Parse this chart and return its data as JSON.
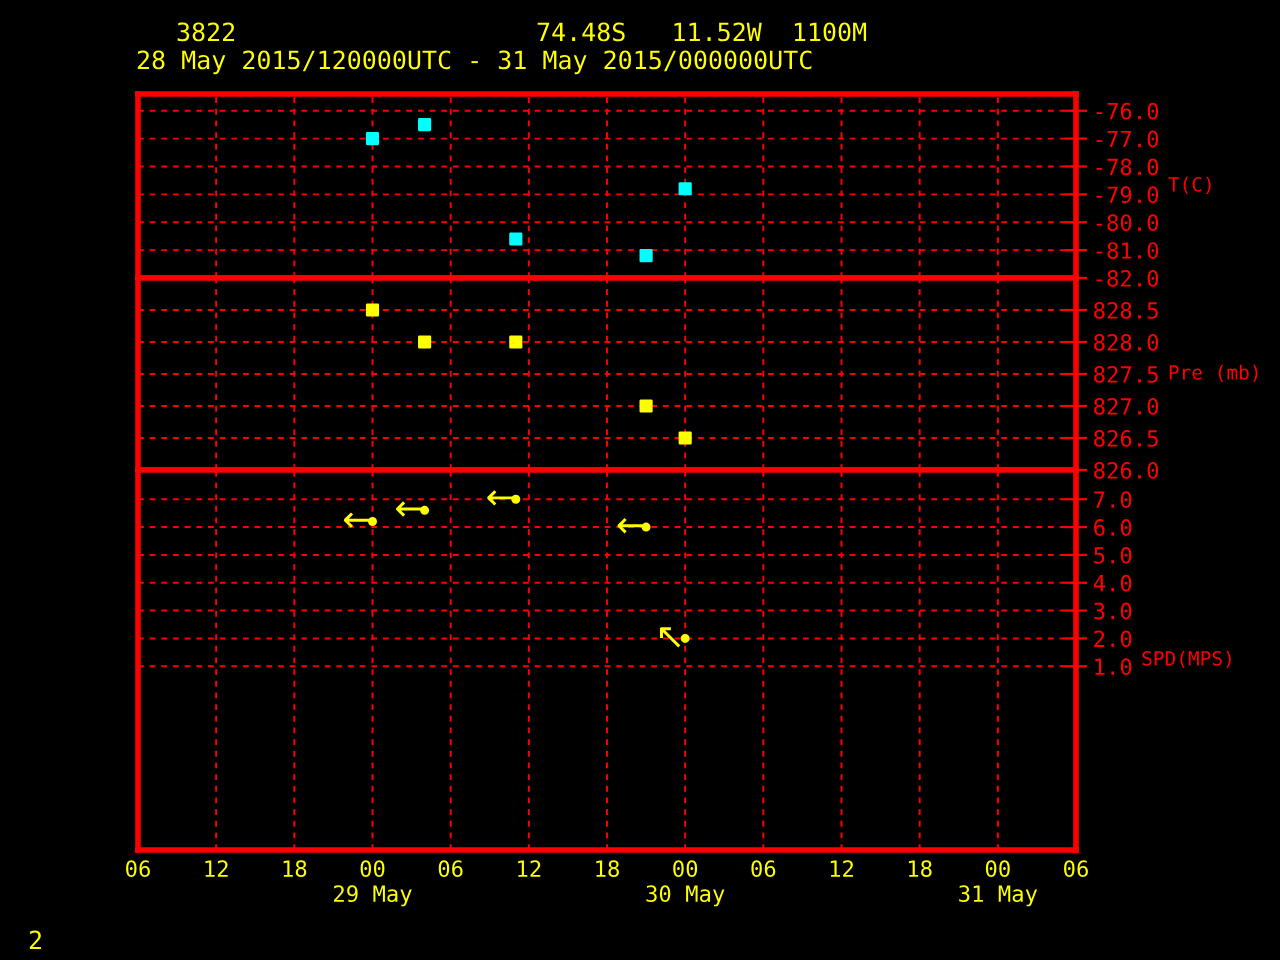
{
  "chart_data": [
    {
      "type": "scatter",
      "title": "3822",
      "subtitle": "74.48S   11.52W  1100M",
      "annotations": [
        "28 May 2015/120000UTC - 31 May 2015/000000UTC"
      ],
      "ylabel": "T(C)",
      "x": [
        "2015-05-29T00:00",
        "2015-05-29T04:00",
        "2015-05-29T11:00",
        "2015-05-29T21:00",
        "2015-05-30T00:00"
      ],
      "series": [
        {
          "color": "#00ffff",
          "values": [
            -77.0,
            -76.5,
            -80.6,
            -81.2,
            -78.8
          ]
        }
      ],
      "marker": "square",
      "xlim": [
        "2015-05-28T06:00",
        "2015-05-31T06:00"
      ],
      "xticks": [
        "2015-05-28T06:00",
        "2015-05-28T12:00",
        "2015-05-28T18:00",
        "2015-05-29T00:00",
        "2015-05-29T06:00",
        "2015-05-29T12:00",
        "2015-05-29T18:00",
        "2015-05-30T00:00",
        "2015-05-30T06:00",
        "2015-05-30T12:00",
        "2015-05-30T18:00",
        "2015-05-31T00:00",
        "2015-05-31T06:00"
      ],
      "ylim": [
        -82.0,
        -75.4
      ],
      "yticks": [
        {
          "value": -76,
          "label": "-76.0"
        },
        {
          "value": -77,
          "label": "-77.0"
        },
        {
          "value": -78,
          "label": "-78.0"
        },
        {
          "value": -79,
          "label": "-79.0"
        },
        {
          "value": -80,
          "label": "-80.0"
        },
        {
          "value": -81,
          "label": "-81.0"
        },
        {
          "value": -82,
          "label": "-82.0"
        }
      ],
      "grid": true,
      "tick_labels": "y"
    },
    {
      "type": "scatter",
      "ylabel": "Pre (mb)",
      "x": [
        "2015-05-29T00:00",
        "2015-05-29T04:00",
        "2015-05-29T11:00",
        "2015-05-29T21:00",
        "2015-05-30T00:00"
      ],
      "series": [
        {
          "color": "#ffff00",
          "values": [
            828.5,
            828.0,
            828.0,
            827.0,
            826.5
          ]
        }
      ],
      "marker": "square",
      "xlim": [
        "2015-05-28T06:00",
        "2015-05-31T06:00"
      ],
      "xticks": [
        "2015-05-28T06:00",
        "2015-05-28T12:00",
        "2015-05-28T18:00",
        "2015-05-29T00:00",
        "2015-05-29T06:00",
        "2015-05-29T12:00",
        "2015-05-29T18:00",
        "2015-05-30T00:00",
        "2015-05-30T06:00",
        "2015-05-30T12:00",
        "2015-05-30T18:00",
        "2015-05-31T00:00",
        "2015-05-31T06:00"
      ],
      "ylim": [
        826.0,
        829.0
      ],
      "yticks": [
        {
          "value": 826.0,
          "label": "826.0"
        },
        {
          "value": 826.5,
          "label": "826.5"
        },
        {
          "value": 827.0,
          "label": "827.0"
        },
        {
          "value": 827.5,
          "label": "827.5"
        },
        {
          "value": 828.0,
          "label": "828.0"
        },
        {
          "value": 828.5,
          "label": "828.5"
        }
      ],
      "grid": true,
      "tick_labels": "y"
    },
    {
      "type": "scatter",
      "ylabel": "SPD(MPS)",
      "annotations": [
        "2"
      ],
      "x": [
        "2015-05-29T00:00",
        "2015-05-29T04:00",
        "2015-05-29T11:00",
        "2015-05-29T21:00",
        "2015-05-30T00:00"
      ],
      "series": [
        {
          "color": "#ffff00",
          "values": [
            6.2,
            6.6,
            7.0,
            6.0,
            2.0
          ],
          "value_labels": [
            "←",
            "←",
            "←",
            "←",
            "↖"
          ]
        }
      ],
      "xlim": [
        "2015-05-28T06:00",
        "2015-05-31T06:00"
      ],
      "xticks": [
        {
          "value": "2015-05-28T06:00",
          "label": "06"
        },
        {
          "value": "2015-05-28T12:00",
          "label": "12"
        },
        {
          "value": "2015-05-28T18:00",
          "label": "18"
        },
        {
          "value": "2015-05-29T00:00",
          "label": "00\n29 May"
        },
        {
          "value": "2015-05-29T06:00",
          "label": "06"
        },
        {
          "value": "2015-05-29T12:00",
          "label": "12"
        },
        {
          "value": "2015-05-29T18:00",
          "label": "18"
        },
        {
          "value": "2015-05-30T00:00",
          "label": "00\n30 May"
        },
        {
          "value": "2015-05-30T06:00",
          "label": "06"
        },
        {
          "value": "2015-05-30T12:00",
          "label": "12"
        },
        {
          "value": "2015-05-30T18:00",
          "label": "18"
        },
        {
          "value": "2015-05-31T00:00",
          "label": "00\n31 May"
        },
        {
          "value": "2015-05-31T06:00",
          "label": "06"
        }
      ],
      "ylim": [
        -5.6,
        8.05
      ],
      "yticks": [
        {
          "value": 1,
          "label": "1.0"
        },
        {
          "value": 2,
          "label": "2.0"
        },
        {
          "value": 3,
          "label": "3.0"
        },
        {
          "value": 4,
          "label": "4.0"
        },
        {
          "value": 5,
          "label": "5.0"
        },
        {
          "value": 6,
          "label": "6.0"
        },
        {
          "value": 7,
          "label": "7.0"
        }
      ],
      "grid": true
    }
  ]
}
